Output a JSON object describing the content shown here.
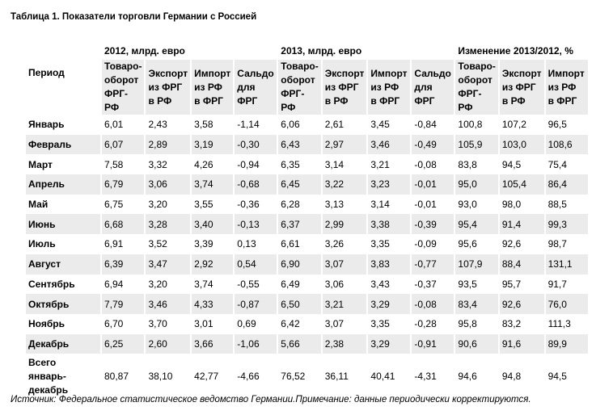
{
  "title": "Таблица 1. Показатели торговли Германии с Россией",
  "table": {
    "period_header": "Период",
    "groups": [
      "2012, млрд. евро",
      "2013, млрд. евро",
      "Изменение 2013/2012, %"
    ],
    "columns": [
      [
        "Товаро-",
        "оборот",
        "ФРГ-РФ"
      ],
      [
        "Экспорт",
        "из ФРГ",
        "в РФ"
      ],
      [
        "Импорт",
        "из РФ",
        "в ФРГ"
      ],
      [
        "Сальдо",
        "для",
        "ФРГ"
      ],
      [
        "Товаро-",
        "оборот",
        "ФРГ-РФ"
      ],
      [
        "Экспорт",
        "из ФРГ",
        "в РФ"
      ],
      [
        "Импорт",
        "из РФ",
        "в ФРГ"
      ],
      [
        "Сальдо",
        "для",
        "ФРГ"
      ],
      [
        "Товаро-",
        "оборот",
        "ФРГ-РФ"
      ],
      [
        "Экспорт",
        "из ФРГ",
        "в РФ"
      ],
      [
        "Импорт",
        "из РФ",
        "в ФРГ"
      ]
    ],
    "rows": [
      {
        "period": "Январь",
        "values": [
          "6,01",
          "2,43",
          "3,58",
          "-1,14",
          "6,06",
          "2,61",
          "3,45",
          "-0,84",
          "100,8",
          "107,2",
          "96,5"
        ]
      },
      {
        "period": "Февраль",
        "values": [
          "6,07",
          "2,89",
          "3,19",
          "-0,30",
          "6,43",
          "2,97",
          "3,46",
          "-0,49",
          "105,9",
          "103,0",
          "108,6"
        ]
      },
      {
        "period": "Март",
        "values": [
          "7,58",
          "3,32",
          "4,26",
          "-0,94",
          "6,35",
          "3,14",
          "3,21",
          "-0,08",
          "83,8",
          "94,5",
          "75,4"
        ]
      },
      {
        "period": "Апрель",
        "values": [
          "6,79",
          "3,06",
          "3,74",
          "-0,68",
          "6,45",
          "3,22",
          "3,23",
          "-0,01",
          "95,0",
          "105,4",
          "86,4"
        ]
      },
      {
        "period": "Май",
        "values": [
          "6,75",
          "3,20",
          "3,55",
          "-0,36",
          "6,28",
          "3,13",
          "3,14",
          "-0,01",
          "93,0",
          "98,0",
          "88,5"
        ]
      },
      {
        "period": "Июнь",
        "values": [
          "6,68",
          "3,28",
          "3,40",
          "-0,13",
          "6,37",
          "2,99",
          "3,38",
          "-0,39",
          "95,4",
          "91,4",
          "99,3"
        ]
      },
      {
        "period": "Июль",
        "values": [
          "6,91",
          "3,52",
          "3,39",
          "0,13",
          "6,61",
          "3,26",
          "3,35",
          "-0,09",
          "95,6",
          "92,6",
          "98,7"
        ]
      },
      {
        "period": "Август",
        "values": [
          "6,39",
          "3,47",
          "2,92",
          "0,54",
          "6,90",
          "3,07",
          "3,83",
          "-0,77",
          "107,9",
          "88,4",
          "131,1"
        ]
      },
      {
        "period": "Сентябрь",
        "values": [
          "6,94",
          "3,20",
          "3,74",
          "-0,55",
          "6,49",
          "3,06",
          "3,43",
          "-0,37",
          "93,5",
          "95,7",
          "91,7"
        ]
      },
      {
        "period": "Октябрь",
        "values": [
          "7,79",
          "3,46",
          "4,33",
          "-0,87",
          "6,50",
          "3,21",
          "3,29",
          "-0,08",
          "83,4",
          "92,6",
          "76,0"
        ]
      },
      {
        "period": "Ноябрь",
        "values": [
          "6,70",
          "3,70",
          "3,01",
          "0,69",
          "6,42",
          "3,07",
          "3,35",
          "-0,28",
          "95,8",
          "83,2",
          "111,3"
        ]
      },
      {
        "period": "Декабрь",
        "values": [
          "6,25",
          "2,60",
          "3,66",
          "-1,06",
          "5,66",
          "2,38",
          "3,29",
          "-0,91",
          "90,6",
          "91,6",
          "89,9"
        ]
      }
    ],
    "total": {
      "period": [
        "Всего",
        "январь-",
        "декабрь"
      ],
      "values": [
        "80,87",
        "38,10",
        "42,77",
        "-4,66",
        "76,52",
        "36,11",
        "40,41",
        "-4,31",
        "94,6",
        "94,8",
        "94,5"
      ]
    }
  },
  "note": "Источник: Федеральное статистическое ведомство Германии.Примечание: данные периодически корректируются."
}
